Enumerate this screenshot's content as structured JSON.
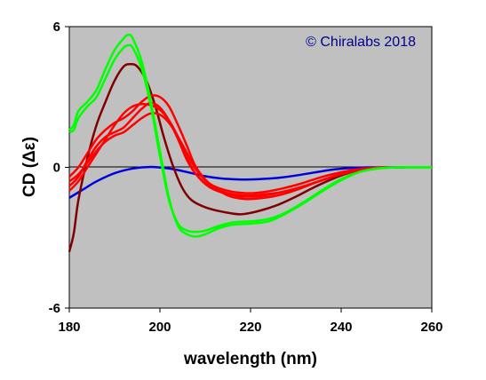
{
  "chart_data": {
    "type": "line",
    "xlabel": "wavelength (nm)",
    "ylabel": "CD (Δε)",
    "xlim": [
      180,
      260
    ],
    "ylim": [
      -6,
      6
    ],
    "x_ticks": [
      "180",
      "200",
      "220",
      "240",
      "260"
    ],
    "y_ticks": [
      "6",
      "0",
      "-6"
    ],
    "grid": false,
    "background_color": "#c0c0c0",
    "watermark": "© Chiralabs 2018",
    "series": [
      {
        "color": "#0000dd",
        "points": [
          [
            180,
            -1.3
          ],
          [
            183,
            -0.95
          ],
          [
            186,
            -0.6
          ],
          [
            190,
            -0.25
          ],
          [
            194,
            -0.05
          ],
          [
            198,
            0.02
          ],
          [
            202,
            -0.05
          ],
          [
            206,
            -0.2
          ],
          [
            210,
            -0.38
          ],
          [
            214,
            -0.48
          ],
          [
            218,
            -0.52
          ],
          [
            222,
            -0.5
          ],
          [
            226,
            -0.45
          ],
          [
            230,
            -0.35
          ],
          [
            234,
            -0.22
          ],
          [
            238,
            -0.1
          ],
          [
            242,
            -0.03
          ],
          [
            246,
            0
          ],
          [
            250,
            0
          ],
          [
            254,
            0
          ]
        ]
      },
      {
        "color": "#800000",
        "points": [
          [
            180,
            -3.6
          ],
          [
            181,
            -2.8
          ],
          [
            182,
            -1.4
          ],
          [
            184,
            0.4
          ],
          [
            186,
            1.8
          ],
          [
            188,
            2.8
          ],
          [
            190,
            3.7
          ],
          [
            192,
            4.3
          ],
          [
            193.5,
            4.4
          ],
          [
            195,
            4.3
          ],
          [
            197,
            3.7
          ],
          [
            199,
            2.6
          ],
          [
            201,
            1.2
          ],
          [
            203,
            0.0
          ],
          [
            205,
            -0.9
          ],
          [
            207,
            -1.4
          ],
          [
            210,
            -1.7
          ],
          [
            214,
            -1.9
          ],
          [
            218,
            -2.0
          ],
          [
            222,
            -1.85
          ],
          [
            226,
            -1.6
          ],
          [
            230,
            -1.25
          ],
          [
            234,
            -0.85
          ],
          [
            238,
            -0.5
          ],
          [
            242,
            -0.22
          ],
          [
            246,
            -0.05
          ],
          [
            250,
            0
          ]
        ]
      },
      {
        "color": "#ff0000",
        "points": [
          [
            180,
            -0.8
          ],
          [
            182,
            -0.4
          ],
          [
            184,
            0.3
          ],
          [
            186,
            0.9
          ],
          [
            188,
            1.3
          ],
          [
            190,
            1.5
          ],
          [
            192,
            1.7
          ],
          [
            194,
            2.1
          ],
          [
            196,
            2.5
          ],
          [
            198,
            2.75
          ],
          [
            200,
            2.55
          ],
          [
            202,
            2.0
          ],
          [
            204,
            1.2
          ],
          [
            206,
            0.3
          ],
          [
            208,
            -0.3
          ],
          [
            211,
            -0.8
          ],
          [
            215,
            -1.1
          ],
          [
            219,
            -1.2
          ],
          [
            223,
            -1.15
          ],
          [
            227,
            -1.05
          ],
          [
            231,
            -0.85
          ],
          [
            235,
            -0.6
          ],
          [
            239,
            -0.35
          ],
          [
            243,
            -0.15
          ],
          [
            247,
            -0.03
          ],
          [
            250,
            0
          ]
        ]
      },
      {
        "color": "#ff0000",
        "points": [
          [
            180,
            -0.6
          ],
          [
            182,
            -0.3
          ],
          [
            184,
            0.2
          ],
          [
            186,
            0.7
          ],
          [
            188,
            1.1
          ],
          [
            190,
            1.35
          ],
          [
            192,
            1.5
          ],
          [
            194,
            1.8
          ],
          [
            196,
            2.1
          ],
          [
            198,
            2.3
          ],
          [
            200,
            2.25
          ],
          [
            202,
            1.9
          ],
          [
            204,
            1.3
          ],
          [
            206,
            0.6
          ],
          [
            208,
            -0.1
          ],
          [
            211,
            -0.7
          ],
          [
            215,
            -1.0
          ],
          [
            219,
            -1.1
          ],
          [
            223,
            -1.05
          ],
          [
            227,
            -0.9
          ],
          [
            231,
            -0.7
          ],
          [
            235,
            -0.45
          ],
          [
            239,
            -0.25
          ],
          [
            243,
            -0.1
          ],
          [
            247,
            -0.02
          ],
          [
            250,
            0
          ]
        ]
      },
      {
        "color": "#ff0000",
        "points": [
          [
            180,
            -1.0
          ],
          [
            182,
            -0.6
          ],
          [
            184,
            0.0
          ],
          [
            186,
            0.6
          ],
          [
            188,
            1.2
          ],
          [
            190,
            1.8
          ],
          [
            192,
            2.3
          ],
          [
            194,
            2.6
          ],
          [
            196,
            2.7
          ],
          [
            198,
            2.65
          ],
          [
            200,
            2.45
          ],
          [
            202,
            2.0
          ],
          [
            204,
            1.3
          ],
          [
            206,
            0.4
          ],
          [
            208,
            -0.3
          ],
          [
            211,
            -0.85
          ],
          [
            215,
            -1.15
          ],
          [
            219,
            -1.25
          ],
          [
            223,
            -1.2
          ],
          [
            227,
            -1.05
          ],
          [
            231,
            -0.85
          ],
          [
            235,
            -0.6
          ],
          [
            239,
            -0.35
          ],
          [
            243,
            -0.15
          ],
          [
            247,
            -0.03
          ],
          [
            250,
            0
          ]
        ]
      },
      {
        "color": "#ff0000",
        "points": [
          [
            180,
            -0.4
          ],
          [
            182,
            0.0
          ],
          [
            184,
            0.6
          ],
          [
            186,
            1.2
          ],
          [
            188,
            1.6
          ],
          [
            190,
            1.9
          ],
          [
            192,
            2.1
          ],
          [
            194,
            2.4
          ],
          [
            196,
            2.8
          ],
          [
            198,
            3.05
          ],
          [
            200,
            3.0
          ],
          [
            202,
            2.6
          ],
          [
            204,
            1.8
          ],
          [
            206,
            0.9
          ],
          [
            208,
            0.0
          ],
          [
            211,
            -0.7
          ],
          [
            215,
            -1.2
          ],
          [
            219,
            -1.35
          ],
          [
            223,
            -1.3
          ],
          [
            227,
            -1.15
          ],
          [
            231,
            -0.9
          ],
          [
            235,
            -0.6
          ],
          [
            239,
            -0.35
          ],
          [
            243,
            -0.15
          ],
          [
            247,
            -0.03
          ],
          [
            250,
            0
          ]
        ]
      },
      {
        "color": "#00ff00",
        "points": [
          [
            180,
            1.6
          ],
          [
            181,
            1.8
          ],
          [
            182,
            2.4
          ],
          [
            184,
            2.8
          ],
          [
            186,
            3.3
          ],
          [
            188,
            4.2
          ],
          [
            190,
            5.0
          ],
          [
            192,
            5.5
          ],
          [
            193,
            5.65
          ],
          [
            194,
            5.5
          ],
          [
            196,
            4.5
          ],
          [
            198,
            2.8
          ],
          [
            200,
            0.7
          ],
          [
            202,
            -1.3
          ],
          [
            204,
            -2.5
          ],
          [
            206,
            -2.85
          ],
          [
            208,
            -2.95
          ],
          [
            210,
            -2.85
          ],
          [
            213,
            -2.6
          ],
          [
            216,
            -2.45
          ],
          [
            220,
            -2.4
          ],
          [
            224,
            -2.3
          ],
          [
            228,
            -1.95
          ],
          [
            232,
            -1.5
          ],
          [
            236,
            -1.0
          ],
          [
            240,
            -0.55
          ],
          [
            244,
            -0.2
          ],
          [
            248,
            -0.05
          ],
          [
            252,
            0.0
          ],
          [
            256,
            0.0
          ],
          [
            260,
            0.0
          ]
        ]
      },
      {
        "color": "#00ff00",
        "points": [
          [
            180,
            1.5
          ],
          [
            181,
            1.6
          ],
          [
            182,
            2.1
          ],
          [
            184,
            2.6
          ],
          [
            186,
            3.0
          ],
          [
            188,
            3.8
          ],
          [
            190,
            4.6
          ],
          [
            192,
            5.1
          ],
          [
            193,
            5.2
          ],
          [
            194,
            5.1
          ],
          [
            196,
            4.2
          ],
          [
            198,
            2.6
          ],
          [
            200,
            0.5
          ],
          [
            202,
            -1.4
          ],
          [
            204,
            -2.4
          ],
          [
            206,
            -2.7
          ],
          [
            208,
            -2.75
          ],
          [
            210,
            -2.7
          ],
          [
            213,
            -2.5
          ],
          [
            216,
            -2.35
          ],
          [
            220,
            -2.3
          ],
          [
            224,
            -2.2
          ],
          [
            228,
            -1.9
          ],
          [
            232,
            -1.45
          ],
          [
            236,
            -0.95
          ],
          [
            240,
            -0.5
          ],
          [
            244,
            -0.2
          ],
          [
            248,
            -0.05
          ],
          [
            252,
            0.0
          ],
          [
            256,
            0.0
          ],
          [
            260,
            0.0
          ]
        ]
      }
    ]
  }
}
